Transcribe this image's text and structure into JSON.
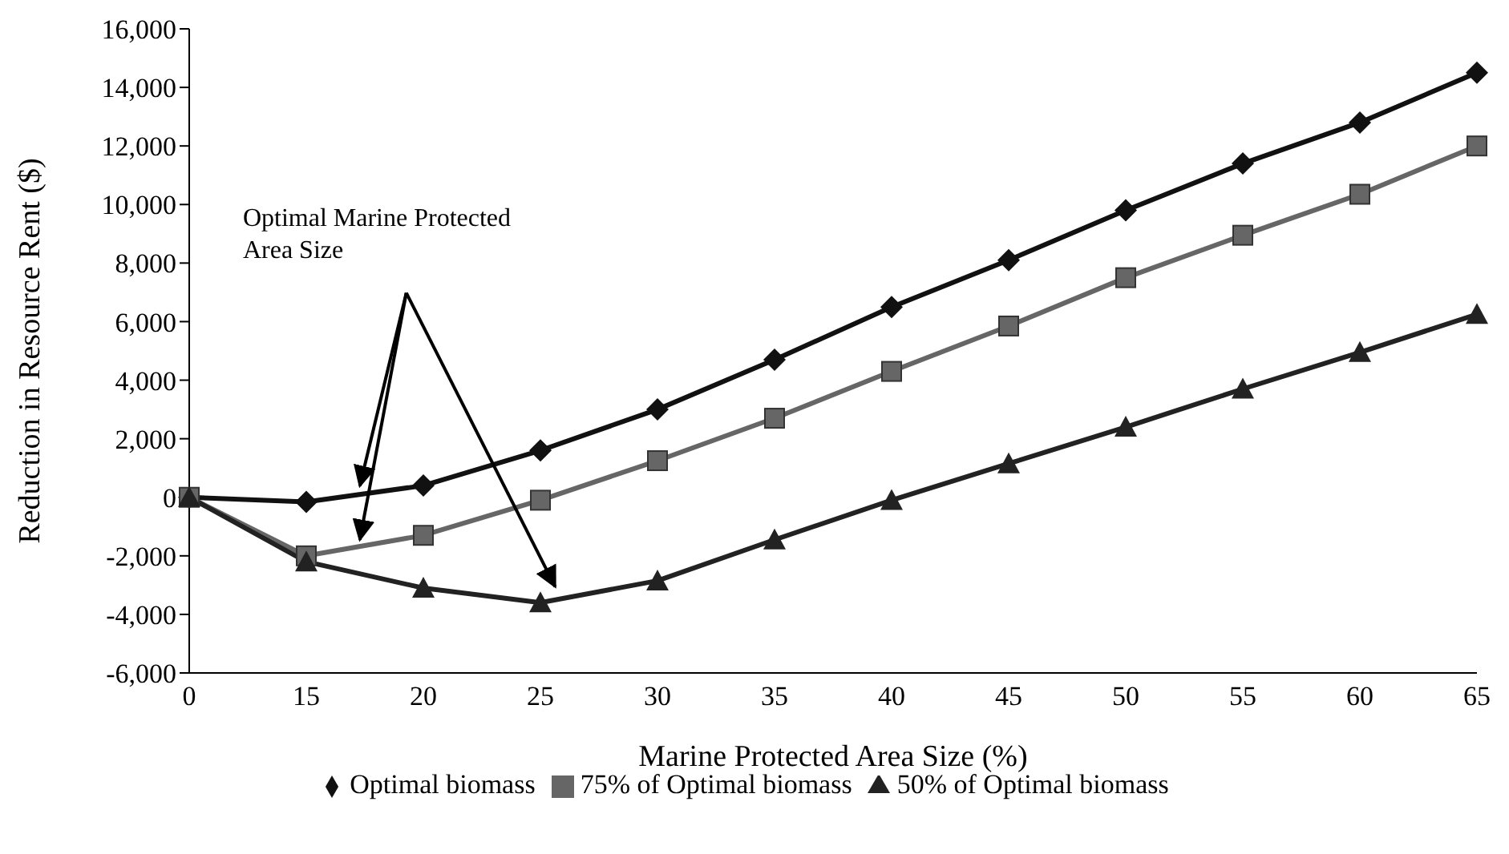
{
  "chart_data": {
    "type": "line",
    "xlabel": "Marine Protected Area Size (%)",
    "ylabel": "Reduction in Resource Rent ($)",
    "categories": [
      "0",
      "15",
      "20",
      "25",
      "30",
      "35",
      "40",
      "45",
      "50",
      "55",
      "60",
      "65"
    ],
    "series": [
      {
        "name": "Optimal biomass",
        "color": "#111111",
        "marker": "diamond",
        "values": [
          0,
          -160,
          400,
          1600,
          3000,
          4700,
          6500,
          8100,
          9800,
          11400,
          12800,
          14500
        ]
      },
      {
        "name": "75% of Optimal biomass",
        "color": "#666666",
        "marker": "square",
        "values": [
          0,
          -2000,
          -1300,
          -100,
          1250,
          2700,
          4300,
          5850,
          7500,
          8950,
          10350,
          12000
        ]
      },
      {
        "name": "50% of Optimal biomass",
        "color": "#222222",
        "marker": "triangle",
        "values": [
          0,
          -2200,
          -3100,
          -3600,
          -2850,
          -1450,
          -100,
          1150,
          2400,
          3700,
          4950,
          6250
        ]
      }
    ],
    "ylim": [
      -6000,
      16000
    ],
    "yticks": [
      {
        "value": -6000,
        "label": "-6,000"
      },
      {
        "value": -4000,
        "label": "-4,000"
      },
      {
        "value": -2000,
        "label": "-2,000"
      },
      0,
      {
        "value": 2000,
        "label": "2,000"
      },
      {
        "value": 4000,
        "label": "4,000"
      },
      {
        "value": 6000,
        "label": "6,000"
      },
      {
        "value": 8000,
        "label": "8,000"
      },
      {
        "value": 10000,
        "label": "10,000"
      },
      {
        "value": 12000,
        "label": "12,000"
      },
      {
        "value": 14000,
        "label": "14,000"
      },
      {
        "value": 16000,
        "label": "16,000"
      }
    ],
    "legend": "bottom",
    "line_style": "solid",
    "annotations": [
      "Optimal Marine Protected Area Size"
    ]
  }
}
